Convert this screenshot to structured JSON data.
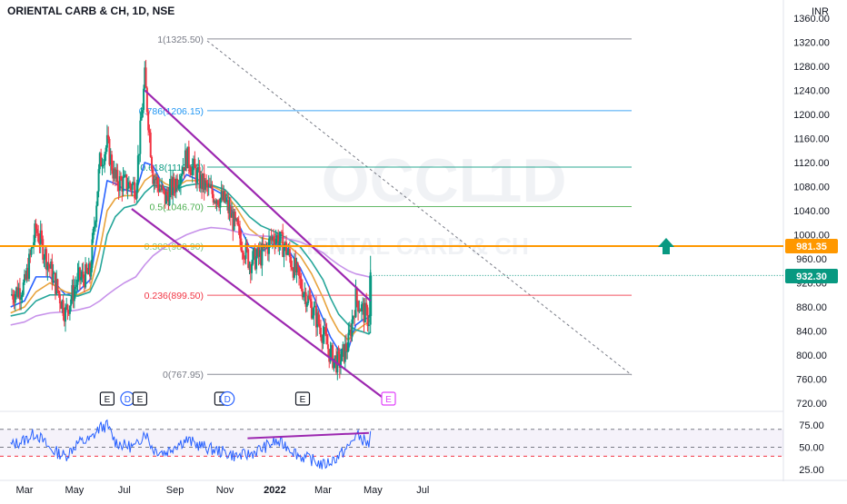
{
  "chart_data": {
    "type": "candlestick",
    "title": "ORIENTAL CARB & CH, 1D, NSE",
    "watermark": {
      "ticker": "OCCL",
      "interval": "1D",
      "name": "ORIENTAL CARB & CH"
    },
    "currency": "INR",
    "ylim": [
      700,
      1380
    ],
    "y_ticks": [
      "1360.00",
      "1320.00",
      "1280.00",
      "1240.00",
      "1200.00",
      "1160.00",
      "1120.00",
      "1080.00",
      "1040.00",
      "1000.00",
      "960.00",
      "920.00",
      "880.00",
      "840.00",
      "800.00",
      "760.00",
      "720.00"
    ],
    "x_ticks": [
      "Mar",
      "May",
      "Jul",
      "Sep",
      "Nov",
      "2022",
      "Mar",
      "May",
      "Jul"
    ],
    "last_price": "932.30",
    "resistance_price": "981.35",
    "fib_levels": [
      {
        "label": "1(1325.50)",
        "value": 1325.5,
        "color": "#787b86"
      },
      {
        "label": "0.786(1206.15)",
        "value": 1206.15,
        "color": "#2196f3"
      },
      {
        "label": "0.618(1112.50)",
        "value": 1112.5,
        "color": "#089981"
      },
      {
        "label": "0.5(1046.70)",
        "value": 1046.7,
        "color": "#4caf50"
      },
      {
        "label": "0.382(980.90)",
        "value": 980.9,
        "color": "#81c784"
      },
      {
        "label": "0.236(899.50)",
        "value": 899.5,
        "color": "#f23645"
      },
      {
        "label": "0(767.95)",
        "value": 767.95,
        "color": "#787b86"
      }
    ],
    "events": [
      {
        "label": "E",
        "x": "Jun 10"
      },
      {
        "label": "D",
        "x": "Jul 5"
      },
      {
        "label": "E",
        "x": "Jul 20"
      },
      {
        "label": "E",
        "x": "Oct 28"
      },
      {
        "label": "D",
        "x": "Nov 4"
      },
      {
        "label": "E",
        "x": "Feb 4"
      },
      {
        "label": "E",
        "x": "May 20"
      }
    ],
    "price_series": {
      "x": [
        "Feb 12",
        "Mar 1",
        "Mar 15",
        "Apr 1",
        "Apr 20",
        "May 5",
        "May 20",
        "Jun 1",
        "Jun 10",
        "Jun 20",
        "Jul 1",
        "Jul 15",
        "Jul 26",
        "Aug 5",
        "Aug 20",
        "Sep 1",
        "Sep 15",
        "Oct 1",
        "Oct 15",
        "Nov 1",
        "Nov 15",
        "Dec 1",
        "Dec 15",
        "Jan 1",
        "Jan 15",
        "Feb 1",
        "Feb 15",
        "Mar 1",
        "Mar 10",
        "Mar 20",
        "Apr 1",
        "Apr 10",
        "Apr 20",
        "Apr 26",
        "Apr 28"
      ],
      "values": [
        900,
        915,
        1010,
        945,
        870,
        925,
        935,
        1120,
        1150,
        1090,
        1085,
        1080,
        1260,
        1100,
        1060,
        1085,
        1130,
        1090,
        1070,
        1055,
        1010,
        955,
        965,
        1000,
        975,
        920,
        880,
        835,
        800,
        785,
        820,
        895,
        870,
        860,
        932.3
      ]
    },
    "ma_series": [
      {
        "color": "#2962ff",
        "values": [
          880,
          890,
          930,
          930,
          900,
          905,
          925,
          1020,
          1090,
          1085,
          1075,
          1070,
          1120,
          1115,
          1075,
          1070,
          1100,
          1090,
          1078,
          1065,
          1025,
          980,
          972,
          985,
          980,
          945,
          905,
          860,
          830,
          808,
          810,
          850,
          860,
          862,
          870
        ]
      },
      {
        "color": "#e8a33d",
        "values": [
          870,
          880,
          905,
          920,
          905,
          900,
          910,
          975,
          1040,
          1060,
          1065,
          1065,
          1090,
          1100,
          1085,
          1078,
          1090,
          1090,
          1082,
          1070,
          1045,
          1010,
          995,
          990,
          985,
          965,
          935,
          895,
          865,
          840,
          825,
          840,
          850,
          855,
          860
        ]
      },
      {
        "color": "#26a69a",
        "values": [
          865,
          870,
          890,
          900,
          900,
          898,
          905,
          940,
          1000,
          1030,
          1045,
          1050,
          1070,
          1082,
          1080,
          1075,
          1082,
          1085,
          1083,
          1075,
          1055,
          1030,
          1015,
          1005,
          995,
          980,
          955,
          925,
          895,
          868,
          850,
          842,
          838,
          835,
          838
        ]
      },
      {
        "color": "#c792ea",
        "values": [
          850,
          855,
          865,
          870,
          872,
          875,
          880,
          890,
          900,
          910,
          920,
          930,
          950,
          965,
          980,
          990,
          1000,
          1008,
          1012,
          1010,
          1005,
          1000,
          998,
          997,
          994,
          988,
          980,
          970,
          960,
          950,
          940,
          935,
          932,
          930,
          928
        ]
      }
    ],
    "channel": {
      "upper": [
        [
          "Jul 26",
          1240
        ],
        [
          "Apr 28",
          890
        ]
      ],
      "lower": [
        [
          "Jul 10",
          1043
        ],
        [
          "May 20",
          722
        ]
      ],
      "color": "#9c27b0"
    },
    "rsi": {
      "ylim": [
        15,
        85
      ],
      "ticks": [
        "75.00",
        "50.00",
        "25.00"
      ],
      "bands": [
        70,
        50,
        40
      ],
      "x": [
        "Feb 12",
        "Mar 1",
        "Mar 15",
        "Apr 1",
        "Apr 20",
        "May 5",
        "May 20",
        "Jun 1",
        "Jun 10",
        "Jun 20",
        "Jul 1",
        "Jul 15",
        "Jul 26",
        "Aug 5",
        "Aug 20",
        "Sep 1",
        "Sep 15",
        "Oct 1",
        "Oct 15",
        "Nov 1",
        "Nov 15",
        "Dec 1",
        "Dec 15",
        "Jan 1",
        "Jan 15",
        "Feb 1",
        "Feb 15",
        "Mar 1",
        "Mar 10",
        "Mar 20",
        "Apr 1",
        "Apr 10",
        "Apr 20",
        "Apr 26",
        "Apr 28"
      ],
      "values": [
        52,
        58,
        66,
        48,
        40,
        55,
        58,
        72,
        74,
        56,
        52,
        50,
        68,
        48,
        44,
        52,
        58,
        52,
        48,
        44,
        40,
        42,
        48,
        56,
        52,
        40,
        36,
        30,
        34,
        40,
        50,
        64,
        58,
        52,
        68
      ],
      "divergence_line": [
        [
          "Jan 1",
          60
        ],
        [
          "Apr 26",
          66
        ]
      ]
    }
  }
}
